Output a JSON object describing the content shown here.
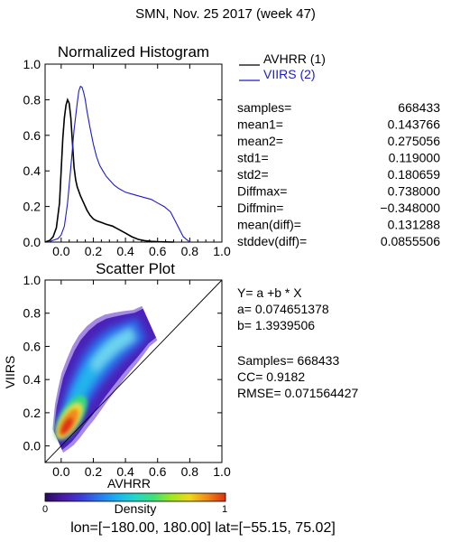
{
  "header": {
    "title": "SMN,  Nov. 25 2017 (week 47)"
  },
  "chart_data": [
    {
      "type": "line",
      "title": "Normalized Histogram",
      "xlim": [
        -0.1,
        1.0
      ],
      "ylim": [
        0.0,
        1.0
      ],
      "xticks": [
        "0.0",
        "0.2",
        "0.4",
        "0.6",
        "0.8",
        "1.0"
      ],
      "yticks": [
        "0.0",
        "0.2",
        "0.4",
        "0.6",
        "0.8",
        "1.0"
      ],
      "legend_position": "top-right, outside plot",
      "series": [
        {
          "name": "AVHRR (1)",
          "color": "#000000",
          "x": [
            -0.1,
            -0.07,
            -0.05,
            -0.03,
            -0.01,
            0.0,
            0.01,
            0.02,
            0.03,
            0.04,
            0.05,
            0.06,
            0.07,
            0.08,
            0.09,
            0.1,
            0.12,
            0.14,
            0.16,
            0.18,
            0.2,
            0.22,
            0.25,
            0.28,
            0.32,
            0.36,
            0.4,
            0.44,
            0.48,
            0.52,
            0.56,
            0.6,
            0.65,
            0.7
          ],
          "y": [
            0.0,
            0.01,
            0.03,
            0.08,
            0.22,
            0.4,
            0.58,
            0.7,
            0.77,
            0.8,
            0.78,
            0.7,
            0.56,
            0.42,
            0.35,
            0.31,
            0.26,
            0.22,
            0.18,
            0.15,
            0.13,
            0.12,
            0.11,
            0.1,
            0.09,
            0.07,
            0.05,
            0.03,
            0.015,
            0.008,
            0.004,
            0.002,
            0.001,
            0.0
          ]
        },
        {
          "name": "VIIRS (2)",
          "color": "#1c1cc8",
          "x": [
            -0.08,
            -0.05,
            -0.02,
            0.0,
            0.02,
            0.04,
            0.06,
            0.08,
            0.1,
            0.11,
            0.12,
            0.13,
            0.14,
            0.15,
            0.16,
            0.18,
            0.2,
            0.22,
            0.24,
            0.26,
            0.28,
            0.3,
            0.33,
            0.36,
            0.4,
            0.44,
            0.48,
            0.52,
            0.56,
            0.6,
            0.64,
            0.68,
            0.72,
            0.76,
            0.8
          ],
          "y": [
            0.0,
            0.01,
            0.02,
            0.04,
            0.09,
            0.22,
            0.42,
            0.63,
            0.78,
            0.85,
            0.875,
            0.87,
            0.84,
            0.8,
            0.74,
            0.64,
            0.55,
            0.48,
            0.43,
            0.4,
            0.37,
            0.35,
            0.32,
            0.3,
            0.28,
            0.27,
            0.26,
            0.25,
            0.24,
            0.22,
            0.2,
            0.17,
            0.1,
            0.03,
            0.0
          ]
        }
      ],
      "stats": [
        {
          "label": "samples=",
          "value": "668433"
        },
        {
          "label": "mean1=",
          "value": "0.143766"
        },
        {
          "label": "mean2=",
          "value": "0.275056"
        },
        {
          "label": "std1=",
          "value": "0.119000"
        },
        {
          "label": "std2=",
          "value": "0.180659"
        },
        {
          "label": "Diffmax=",
          "value": "0.738000"
        },
        {
          "label": "Diffmin=",
          "value": "−0.348000"
        },
        {
          "label": "mean(diff)=",
          "value": "0.131288"
        },
        {
          "label": "stddev(diff)=",
          "value": "0.0855506"
        }
      ]
    },
    {
      "type": "scatter",
      "title": "Scatter Plot",
      "xlabel": "AVHRR",
      "ylabel": "VIIRS",
      "xlim": [
        -0.1,
        1.0
      ],
      "ylim": [
        -0.1,
        1.0
      ],
      "xticks": [
        "0.0",
        "0.2",
        "0.4",
        "0.6",
        "0.8",
        "1.0"
      ],
      "yticks": [
        "0.0",
        "0.2",
        "0.4",
        "0.6",
        "0.8",
        "1.0"
      ],
      "one_to_one_line": true,
      "density_ridge": {
        "x": [
          -0.02,
          0.0,
          0.02,
          0.05,
          0.08,
          0.12,
          0.16,
          0.2,
          0.25,
          0.3,
          0.35,
          0.4,
          0.45,
          0.5,
          0.55
        ],
        "y": [
          0.03,
          0.08,
          0.13,
          0.2,
          0.27,
          0.34,
          0.41,
          0.47,
          0.53,
          0.58,
          0.62,
          0.65,
          0.68,
          0.71,
          0.74
        ]
      },
      "regression_text": [
        "Y= a +b * X",
        "a= 0.074651378",
        "b= 1.3939506"
      ],
      "stats_text": [
        "Samples= 668433",
        "CC=   0.9182",
        "RMSE= 0.071564427"
      ]
    }
  ],
  "colorbar": {
    "label": "Density",
    "min_label": "0",
    "max_label": "1",
    "colors": [
      "#2a0a64",
      "#4b1aa8",
      "#3c3cd8",
      "#2a78f0",
      "#18b4f0",
      "#20d8c8",
      "#40e078",
      "#a0e820",
      "#f0d818",
      "#f08818",
      "#e03010"
    ]
  },
  "footer": {
    "text": "lon=[−180.00, 180.00] lat=[−55.15, 75.02]"
  }
}
